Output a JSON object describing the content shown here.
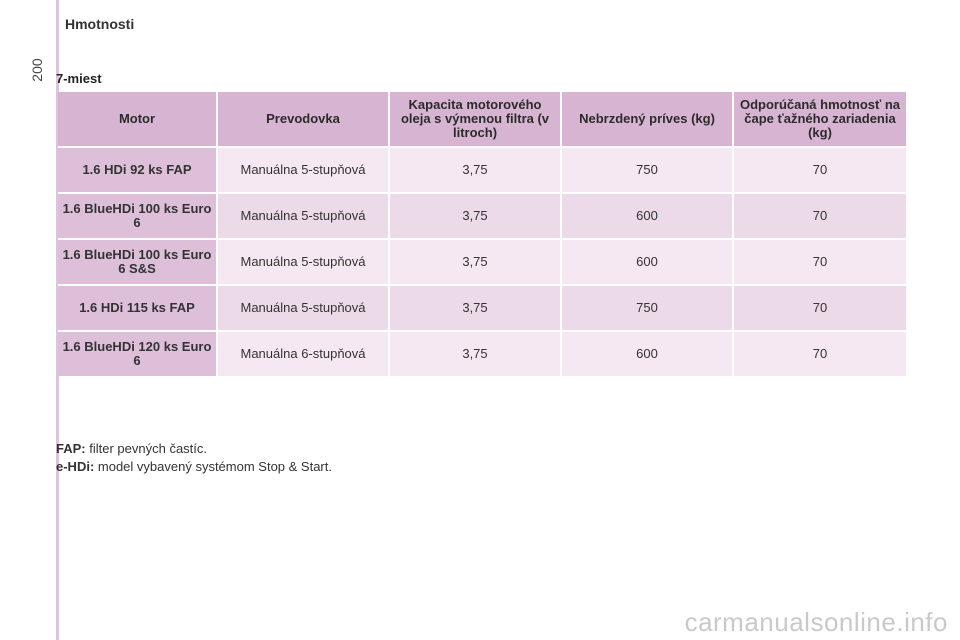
{
  "header": {
    "section_title": "Hmotnosti",
    "page_number": "200"
  },
  "subtitle": "7-miest",
  "table": {
    "columns": [
      "Motor",
      "Prevodovka",
      "Kapacita motorového oleja s výmenou filtra (v litroch)",
      "Nebrzdený príves (kg)",
      "Odporúčaná hmotnosť na čape ťažného zariadenia (kg)"
    ],
    "rows": [
      {
        "motor": "1.6 HDi 92 ks FAP",
        "gearbox": "Manuálna 5-stupňová",
        "oil": "3,75",
        "trailer": "750",
        "towball": "70"
      },
      {
        "motor": "1.6 BlueHDi 100 ks Euro 6",
        "gearbox": "Manuálna 5-stupňová",
        "oil": "3,75",
        "trailer": "600",
        "towball": "70"
      },
      {
        "motor": "1.6 BlueHDi 100 ks Euro 6 S&S",
        "gearbox": "Manuálna 5-stupňová",
        "oil": "3,75",
        "trailer": "600",
        "towball": "70"
      },
      {
        "motor": "1.6 HDi 115 ks FAP",
        "gearbox": "Manuálna 5-stupňová",
        "oil": "3,75",
        "trailer": "750",
        "towball": "70"
      },
      {
        "motor": "1.6 BlueHDi 120 ks Euro 6",
        "gearbox": "Manuálna 6-stupňová",
        "oil": "3,75",
        "trailer": "600",
        "towball": "70"
      }
    ]
  },
  "notes": [
    {
      "term": "FAP:",
      "text": " filter pevných častíc."
    },
    {
      "term": "e-HDi:",
      "text": " model vybavený systémom Stop & Start."
    }
  ],
  "watermark": "carmanualsonline.info",
  "colors": {
    "header_bg": "#d8b4d3",
    "motor_bg": "#ddbfda",
    "row_light": "#f5e8f2",
    "row_dark": "#ecdae8"
  }
}
